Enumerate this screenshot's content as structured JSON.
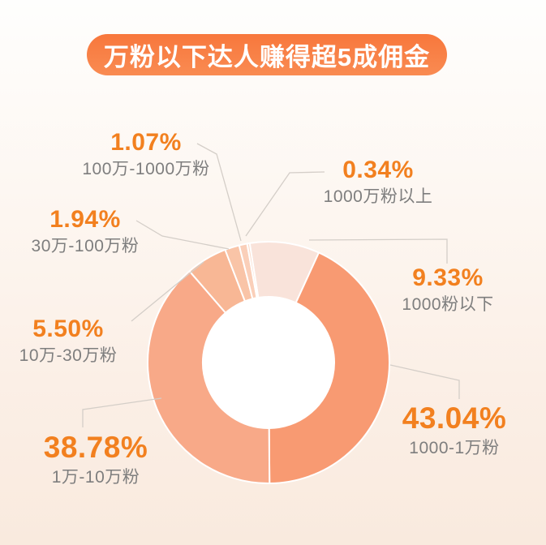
{
  "header": {
    "title": "万粉以下达人赚得超5成佣金",
    "pill_color": "#F8823F",
    "title_text_color": "#FFFFFF"
  },
  "chart_data": {
    "type": "pie",
    "donut": true,
    "title": "万粉以下达人赚得超5成佣金",
    "direction": "clockwise",
    "start_angle_deg_from_top": -9,
    "legend_position": "callout-labels",
    "segments": [
      {
        "name": "1000粉以下",
        "value": 9.33,
        "pct_label": "9.33%",
        "color": "#F9E3DA"
      },
      {
        "name": "1000-1万粉",
        "value": 43.04,
        "pct_label": "43.04%",
        "color": "#F89A72"
      },
      {
        "name": "1万-10万粉",
        "value": 38.78,
        "pct_label": "38.78%",
        "color": "#F8A988"
      },
      {
        "name": "10万-30万粉",
        "value": 5.5,
        "pct_label": "5.50%",
        "color": "#F8B795"
      },
      {
        "name": "30万-100万粉",
        "value": 1.94,
        "pct_label": "1.94%",
        "color": "#F9C4A7"
      },
      {
        "name": "100万-1000万粉",
        "value": 1.07,
        "pct_label": "1.07%",
        "color": "#FACFB9"
      },
      {
        "name": "1000万粉以上",
        "value": 0.34,
        "pct_label": "0.34%",
        "color": "#FBDAC9"
      }
    ],
    "percent_text_color": "#F2801F",
    "category_text_color": "#7E7E7E",
    "leader_line_color": "#D4CEC8",
    "hole_color": "#FFFFFF",
    "separator_color": "#FFFFFF"
  }
}
